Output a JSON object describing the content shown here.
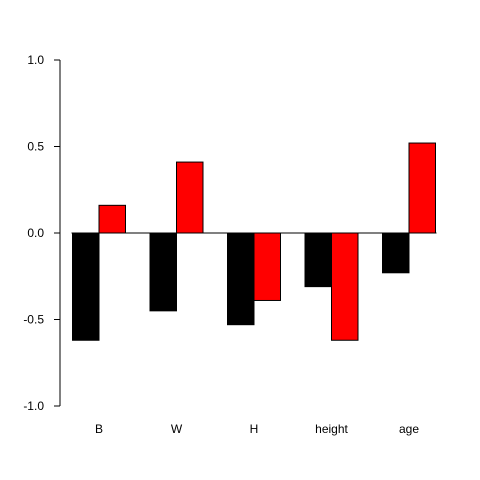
{
  "chart_data": {
    "type": "bar",
    "categories": [
      "B",
      "W",
      "H",
      "height",
      "age"
    ],
    "series": [
      {
        "color": "#000000",
        "values": [
          -0.62,
          -0.45,
          -0.53,
          -0.31,
          -0.23
        ]
      },
      {
        "color": "#ff0000",
        "values": [
          0.16,
          0.41,
          -0.39,
          -0.62,
          0.52
        ]
      }
    ],
    "ylim": [
      -1.0,
      1.0
    ],
    "yticks": [
      -1.0,
      -0.5,
      0.0,
      0.5,
      1.0
    ],
    "ytick_labels": [
      "-1.0",
      "-0.5",
      "0.0",
      "0.5",
      "1.0"
    ],
    "zero_line": true,
    "grid": false,
    "legend": "none",
    "title": "",
    "xlabel": "",
    "ylabel": ""
  }
}
